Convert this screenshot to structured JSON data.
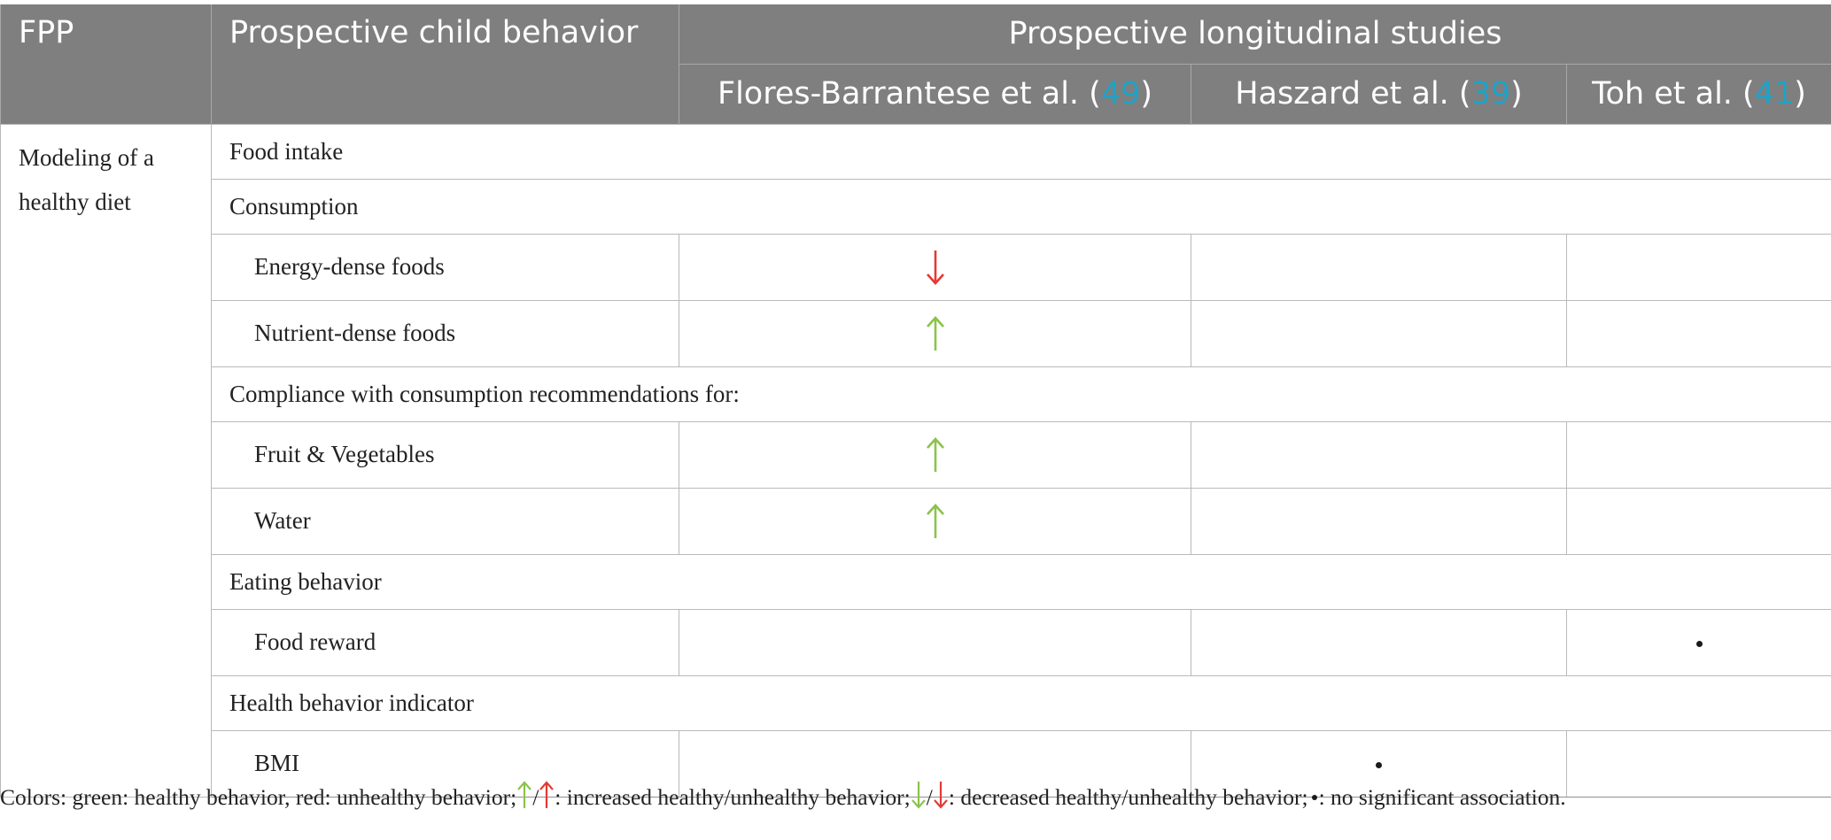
{
  "colors": {
    "header_bg": "#7f7f7f",
    "citation": "#1ea3c8",
    "healthy_green": "#8bc34a",
    "unhealthy_red": "#e53935",
    "grid": "#b9b9b9"
  },
  "header": {
    "fpp": "FPP",
    "behavior": "Prospective child behavior",
    "group": "Prospective longitudinal studies",
    "studies": [
      {
        "name_prefix": "Flores-Barrantese et al. (",
        "ref": "49",
        "suffix": ")"
      },
      {
        "name_prefix": "Haszard et al. (",
        "ref": "39",
        "suffix": ")"
      },
      {
        "name_prefix": "Toh et al. (",
        "ref": "41",
        "suffix": ")"
      }
    ]
  },
  "body": {
    "fpp_label_line1": "Modeling of a",
    "fpp_label_line2": "healthy diet",
    "rows": [
      {
        "type": "section",
        "label": "Food intake"
      },
      {
        "type": "section",
        "label": "Consumption"
      },
      {
        "type": "item",
        "label": "Energy-dense foods",
        "marks": [
          "down-red",
          "",
          ""
        ]
      },
      {
        "type": "item",
        "label": "Nutrient-dense foods",
        "marks": [
          "up-green",
          "",
          ""
        ]
      },
      {
        "type": "section",
        "label": "Compliance with consumption recommendations for:"
      },
      {
        "type": "item",
        "label": "Fruit & Vegetables",
        "marks": [
          "up-green",
          "",
          ""
        ]
      },
      {
        "type": "item",
        "label": "Water",
        "marks": [
          "up-green",
          "",
          ""
        ]
      },
      {
        "type": "section",
        "label": "Eating behavior"
      },
      {
        "type": "item",
        "label": "Food reward",
        "marks": [
          "",
          "",
          "dot"
        ]
      },
      {
        "type": "section",
        "label": "Health behavior indicator"
      },
      {
        "type": "item",
        "label": "BMI",
        "marks": [
          "",
          "dot",
          ""
        ]
      }
    ]
  },
  "footnote": {
    "part1": "Colors: green: healthy behavior, red: unhealthy behavior; ",
    "slash1": "/",
    "part2": ": increased healthy/unhealthy behavior; ",
    "slash2": "/",
    "part3": ": decreased healthy/unhealthy behavior; ",
    "part4": ": no significant association."
  }
}
